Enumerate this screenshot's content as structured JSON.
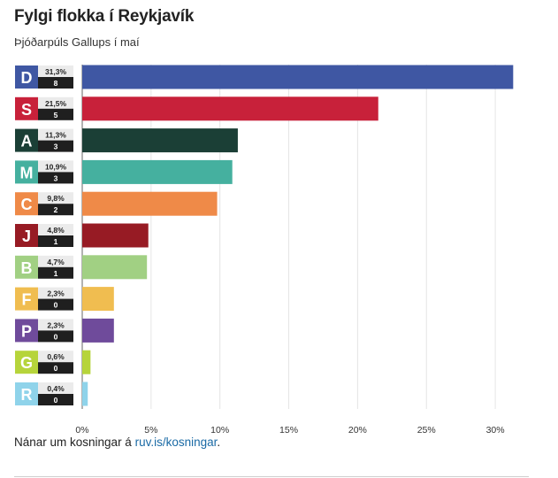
{
  "header": {
    "title": "Fylgi flokka í Reykjavík",
    "subtitle": "Þjóðarpúls Gallups í maí"
  },
  "footer": {
    "text": "Nánar um kosningar á ",
    "link_label": "ruv.is/kosningar",
    "suffix": "."
  },
  "chart_data": {
    "type": "bar",
    "orientation": "horizontal",
    "categories": [
      "D",
      "S",
      "A",
      "M",
      "C",
      "J",
      "B",
      "F",
      "P",
      "G",
      "R"
    ],
    "values": [
      31.3,
      21.5,
      11.3,
      10.9,
      9.8,
      4.8,
      4.7,
      2.3,
      2.3,
      0.6,
      0.4
    ],
    "value_labels": [
      "31,3%",
      "21,5%",
      "11,3%",
      "10,9%",
      "9,8%",
      "4,8%",
      "4,7%",
      "2,3%",
      "2,3%",
      "0,6%",
      "0,4%"
    ],
    "seats": [
      "8",
      "5",
      "3",
      "3",
      "2",
      "1",
      "1",
      "0",
      "0",
      "0",
      "0"
    ],
    "colors": [
      "#3f57a3",
      "#c8213a",
      "#1b3f36",
      "#45b09f",
      "#ef8a48",
      "#971b24",
      "#a1d083",
      "#f0bd50",
      "#6f4b9b",
      "#b6d43b",
      "#8fd3ea"
    ],
    "xlim": [
      0,
      32.5
    ],
    "xticks": [
      0,
      5,
      10,
      15,
      20,
      25,
      30
    ],
    "xtick_labels": [
      "0%",
      "5%",
      "10%",
      "15%",
      "20%",
      "25%",
      "30%"
    ],
    "grid": true
  }
}
